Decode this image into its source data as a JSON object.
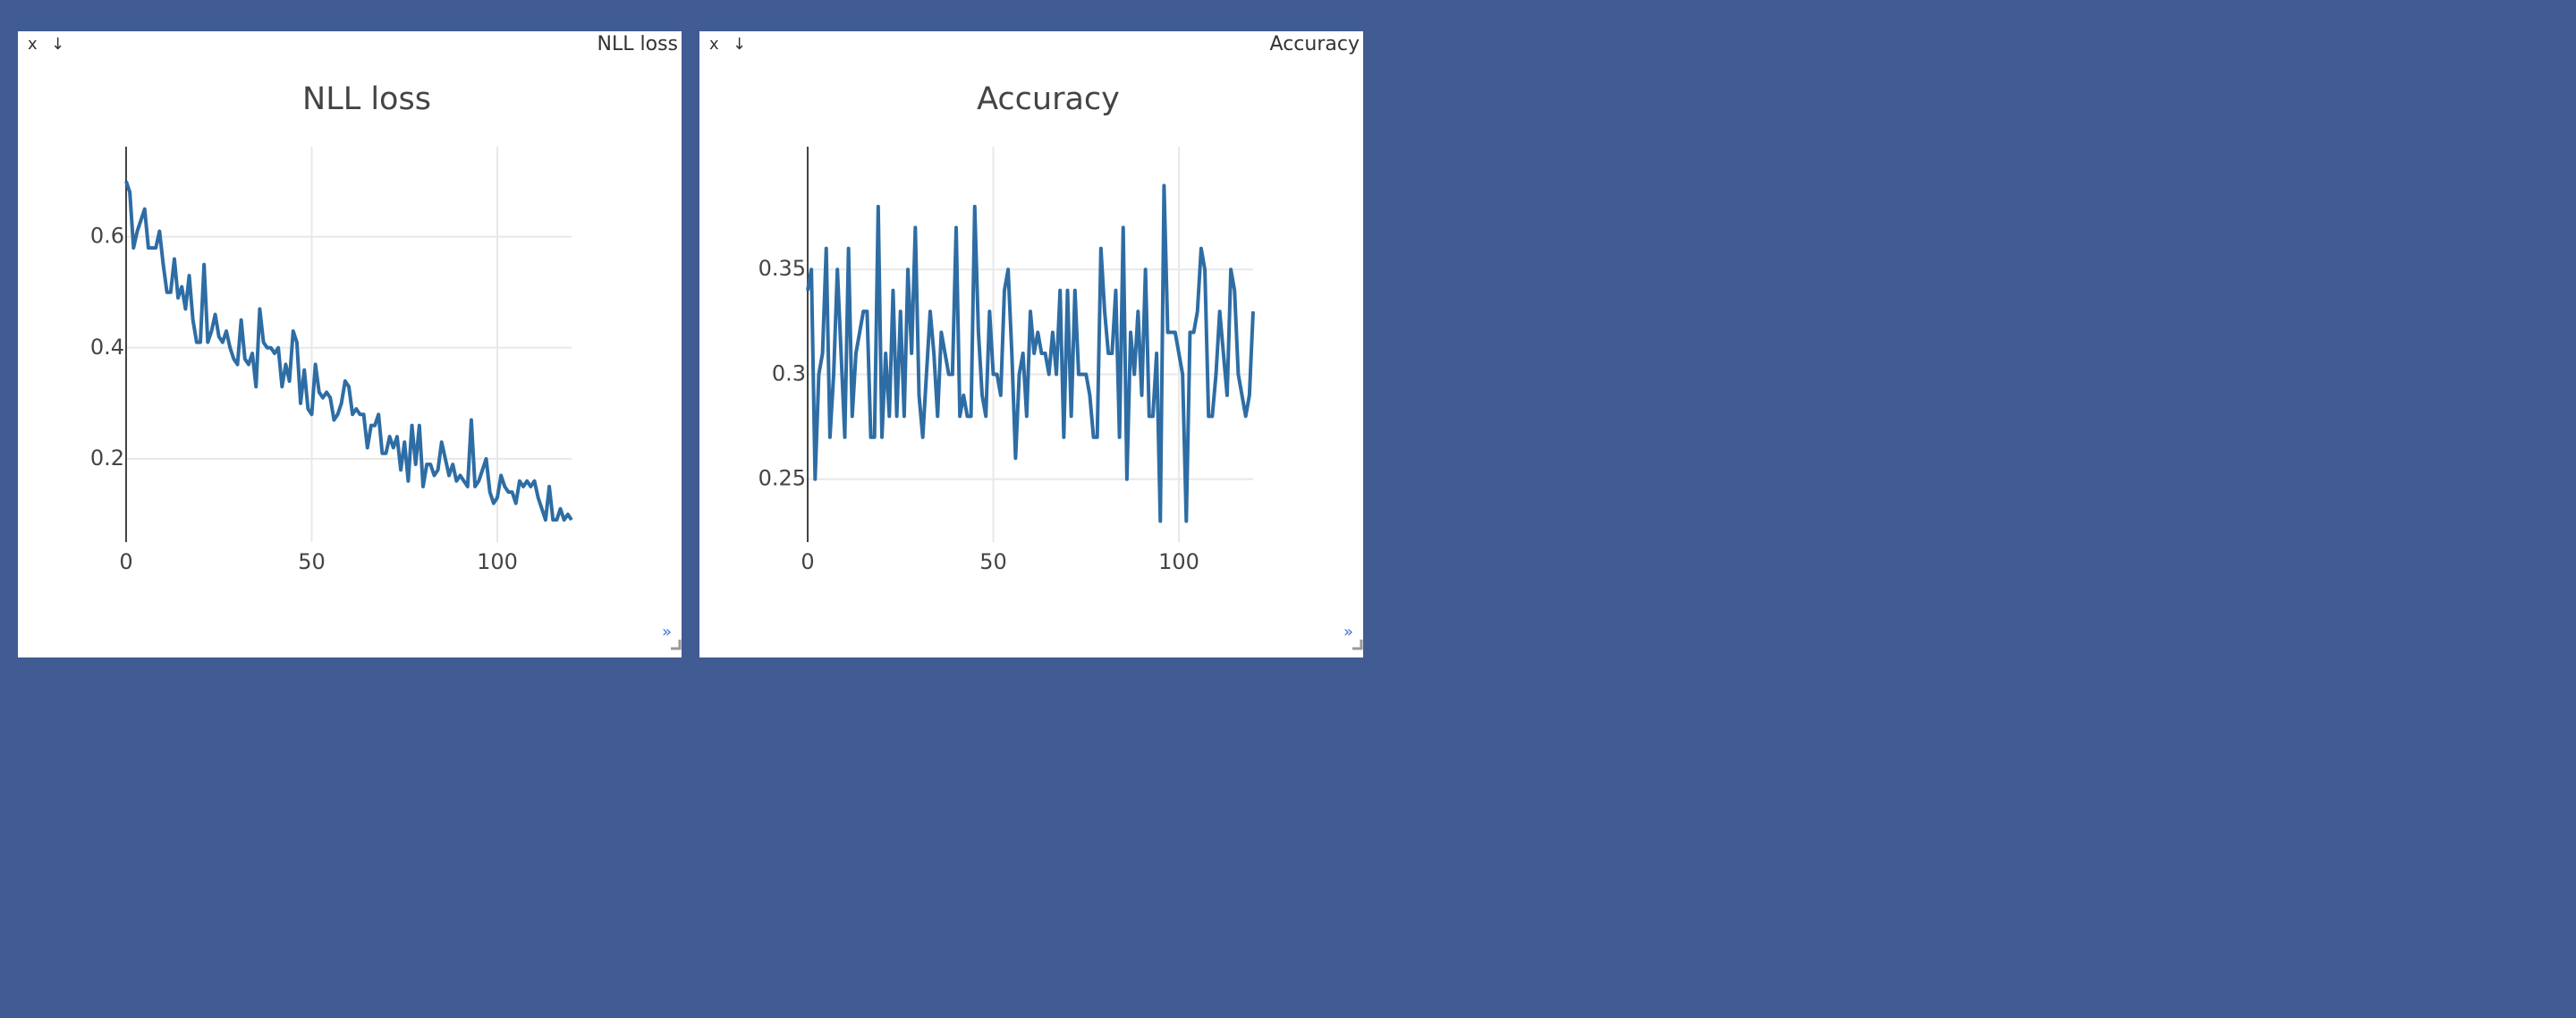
{
  "panes": [
    {
      "title": "NLL loss",
      "close": "x",
      "download": "↓",
      "expand": "»"
    },
    {
      "title": "Accuracy",
      "close": "x",
      "download": "↓",
      "expand": "»"
    }
  ],
  "chart_data": [
    {
      "type": "line",
      "title": "NLL loss",
      "color": "#2e6da4",
      "grid": true,
      "xlim": [
        0,
        120
      ],
      "xticks": [
        0,
        50,
        100
      ],
      "ylim": [
        0.05,
        0.73
      ],
      "yticks": [
        0.2,
        0.4,
        0.6
      ],
      "x": [
        0,
        1,
        2,
        3,
        4,
        5,
        6,
        7,
        8,
        9,
        10,
        11,
        12,
        13,
        14,
        15,
        16,
        17,
        18,
        19,
        20,
        21,
        22,
        23,
        24,
        25,
        26,
        27,
        28,
        29,
        30,
        31,
        32,
        33,
        34,
        35,
        36,
        37,
        38,
        39,
        40,
        41,
        42,
        43,
        44,
        45,
        46,
        47,
        48,
        49,
        50,
        51,
        52,
        53,
        54,
        55,
        56,
        57,
        58,
        59,
        60,
        61,
        62,
        63,
        64,
        65,
        66,
        67,
        68,
        69,
        70,
        71,
        72,
        73,
        74,
        75,
        76,
        77,
        78,
        79,
        80,
        81,
        82,
        83,
        84,
        85,
        86,
        87,
        88,
        89,
        90,
        91,
        92,
        93,
        94,
        95,
        96,
        97,
        98,
        99,
        100,
        101,
        102,
        103,
        104,
        105,
        106,
        107,
        108,
        109,
        110,
        111,
        112,
        113,
        114,
        115,
        116,
        117,
        118,
        119,
        120
      ],
      "values": [
        0.7,
        0.68,
        0.58,
        0.61,
        0.63,
        0.65,
        0.58,
        0.58,
        0.58,
        0.61,
        0.55,
        0.5,
        0.5,
        0.56,
        0.49,
        0.51,
        0.47,
        0.53,
        0.45,
        0.41,
        0.41,
        0.55,
        0.41,
        0.43,
        0.46,
        0.42,
        0.41,
        0.43,
        0.4,
        0.38,
        0.37,
        0.45,
        0.38,
        0.37,
        0.39,
        0.33,
        0.47,
        0.41,
        0.4,
        0.4,
        0.39,
        0.4,
        0.33,
        0.37,
        0.34,
        0.43,
        0.41,
        0.3,
        0.36,
        0.29,
        0.28,
        0.37,
        0.32,
        0.31,
        0.32,
        0.31,
        0.27,
        0.28,
        0.3,
        0.34,
        0.33,
        0.28,
        0.29,
        0.28,
        0.28,
        0.22,
        0.26,
        0.26,
        0.28,
        0.21,
        0.21,
        0.24,
        0.22,
        0.24,
        0.18,
        0.23,
        0.16,
        0.26,
        0.19,
        0.26,
        0.15,
        0.19,
        0.19,
        0.17,
        0.18,
        0.23,
        0.2,
        0.17,
        0.19,
        0.16,
        0.17,
        0.16,
        0.15,
        0.27,
        0.15,
        0.16,
        0.18,
        0.2,
        0.14,
        0.12,
        0.13,
        0.17,
        0.15,
        0.14,
        0.14,
        0.12,
        0.16,
        0.15,
        0.16,
        0.15,
        0.16,
        0.13,
        0.11,
        0.09,
        0.15,
        0.09,
        0.09,
        0.11,
        0.09,
        0.1,
        0.09
      ]
    },
    {
      "type": "line",
      "title": "Accuracy",
      "color": "#2e6da4",
      "grid": true,
      "xlim": [
        0,
        120
      ],
      "xticks": [
        0,
        50,
        100
      ],
      "ylim": [
        0.22,
        0.4
      ],
      "yticks": [
        0.25,
        0.3,
        0.35
      ],
      "x": [
        0,
        1,
        2,
        3,
        4,
        5,
        6,
        7,
        8,
        9,
        10,
        11,
        12,
        13,
        14,
        15,
        16,
        17,
        18,
        19,
        20,
        21,
        22,
        23,
        24,
        25,
        26,
        27,
        28,
        29,
        30,
        31,
        32,
        33,
        34,
        35,
        36,
        37,
        38,
        39,
        40,
        41,
        42,
        43,
        44,
        45,
        46,
        47,
        48,
        49,
        50,
        51,
        52,
        53,
        54,
        55,
        56,
        57,
        58,
        59,
        60,
        61,
        62,
        63,
        64,
        65,
        66,
        67,
        68,
        69,
        70,
        71,
        72,
        73,
        74,
        75,
        76,
        77,
        78,
        79,
        80,
        81,
        82,
        83,
        84,
        85,
        86,
        87,
        88,
        89,
        90,
        91,
        92,
        93,
        94,
        95,
        96,
        97,
        98,
        99,
        100,
        101,
        102,
        103,
        104,
        105,
        106,
        107,
        108,
        109,
        110,
        111,
        112,
        113,
        114,
        115,
        116,
        117,
        118,
        119,
        120
      ],
      "values": [
        0.34,
        0.35,
        0.25,
        0.3,
        0.31,
        0.36,
        0.27,
        0.3,
        0.35,
        0.31,
        0.27,
        0.36,
        0.28,
        0.31,
        0.32,
        0.33,
        0.33,
        0.27,
        0.27,
        0.38,
        0.27,
        0.31,
        0.28,
        0.34,
        0.28,
        0.33,
        0.28,
        0.35,
        0.31,
        0.37,
        0.29,
        0.27,
        0.3,
        0.33,
        0.31,
        0.28,
        0.32,
        0.31,
        0.3,
        0.3,
        0.37,
        0.28,
        0.29,
        0.28,
        0.28,
        0.38,
        0.32,
        0.29,
        0.28,
        0.33,
        0.3,
        0.3,
        0.29,
        0.34,
        0.35,
        0.31,
        0.26,
        0.3,
        0.31,
        0.28,
        0.33,
        0.31,
        0.32,
        0.31,
        0.31,
        0.3,
        0.32,
        0.3,
        0.34,
        0.27,
        0.34,
        0.28,
        0.34,
        0.3,
        0.3,
        0.3,
        0.29,
        0.27,
        0.27,
        0.36,
        0.33,
        0.31,
        0.31,
        0.34,
        0.27,
        0.37,
        0.25,
        0.32,
        0.3,
        0.33,
        0.29,
        0.35,
        0.28,
        0.28,
        0.31,
        0.23,
        0.39,
        0.32,
        0.32,
        0.32,
        0.31,
        0.3,
        0.23,
        0.32,
        0.32,
        0.33,
        0.36,
        0.35,
        0.28,
        0.28,
        0.3,
        0.33,
        0.31,
        0.29,
        0.35,
        0.34,
        0.3,
        0.29,
        0.28,
        0.29,
        0.33
      ]
    }
  ]
}
